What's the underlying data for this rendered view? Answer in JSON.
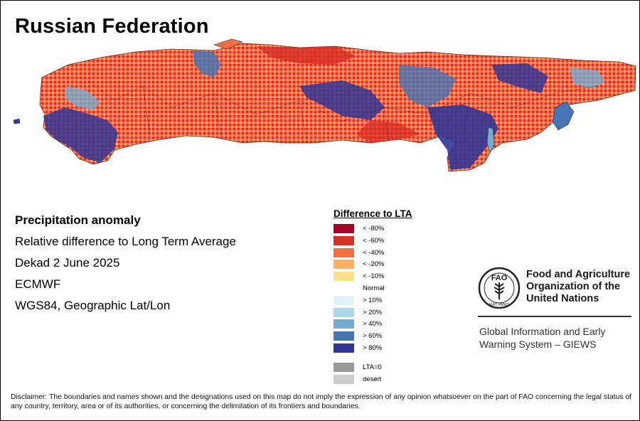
{
  "title": "Russian Federation",
  "info": {
    "heading": "Precipitation anomaly",
    "subtitle": "Relative difference to Long Term Average",
    "period": "Dekad 2 June 2025",
    "source": "ECMWF",
    "projection": "WGS84, Geographic Lat/Lon"
  },
  "legend": {
    "title": "Difference to LTA",
    "items": [
      {
        "label": "< -80%",
        "color": "#a50026"
      },
      {
        "label": "< -60%",
        "color": "#d73027"
      },
      {
        "label": "< -40%",
        "color": "#f46d43"
      },
      {
        "label": "< -20%",
        "color": "#fdae61"
      },
      {
        "label": "< -10%",
        "color": "#fee090"
      },
      {
        "label": "Normal",
        "color": "#ffffff"
      },
      {
        "label": "> 10%",
        "color": "#e0f3f8"
      },
      {
        "label": "> 20%",
        "color": "#abd9e9"
      },
      {
        "label": "> 40%",
        "color": "#74add1"
      },
      {
        "label": "> 60%",
        "color": "#4575b4"
      },
      {
        "label": "> 80%",
        "color": "#313695"
      }
    ],
    "extra": [
      {
        "label": "LTA=0",
        "color": "#999999"
      },
      {
        "label": "desert",
        "color": "#cccccc"
      }
    ]
  },
  "fao": {
    "name_lines": [
      "Food and Agriculture",
      "Organization of the",
      "United Nations"
    ],
    "logo_text": "FAO",
    "motto": "FIAT PANIS"
  },
  "giews": {
    "lines": [
      "Global Information and Early",
      "Warning System – GIEWS"
    ]
  },
  "disclaimer": "Disclaimer: The boundaries and names shown and the designations used on this map do not imply the expression of any opinion whatsoever on the part of FAO concerning the legal status of any country, territory, area or of its authorities, or concerning the delimitation of its frontiers and boundaries."
}
